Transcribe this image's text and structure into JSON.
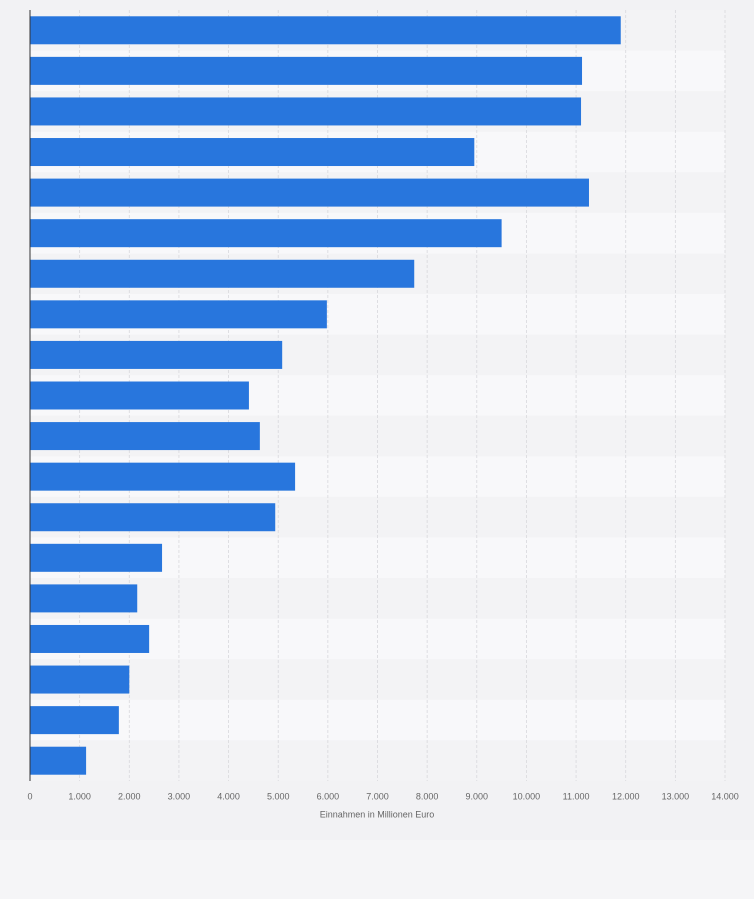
{
  "chart_data": {
    "type": "bar",
    "orientation": "horizontal",
    "x_label": "Einnahmen in Millionen Euro",
    "categories": [
      null,
      null,
      null,
      null,
      null,
      null,
      null,
      null,
      null,
      null,
      null,
      null,
      null,
      null,
      null,
      null,
      null,
      null,
      null
    ],
    "values": [
      11900,
      11120,
      11100,
      8950,
      11260,
      9500,
      7740,
      5980,
      5080,
      4410,
      4630,
      5340,
      4940,
      2660,
      2160,
      2400,
      2000,
      1790,
      1130
    ],
    "color": "#2876dd",
    "xlim": [
      0,
      14000
    ],
    "xticks": [
      0,
      {
        "value": 1000,
        "label": "1.000"
      },
      {
        "value": 2000,
        "label": "2.000"
      },
      {
        "value": 3000,
        "label": "3.000"
      },
      {
        "value": 4000,
        "label": "4.000"
      },
      {
        "value": 5000,
        "label": "5.000"
      },
      {
        "value": 6000,
        "label": "6.000"
      },
      {
        "value": 7000,
        "label": "7.000"
      },
      {
        "value": 8000,
        "label": "8.000"
      },
      {
        "value": 9000,
        "label": "9.000"
      },
      {
        "value": 10000,
        "label": "10.000"
      },
      {
        "value": 11000,
        "label": "11.000"
      },
      {
        "value": 12000,
        "label": "12.000"
      },
      {
        "value": 13000,
        "label": "13.000"
      },
      {
        "value": 14000,
        "label": "14.000"
      }
    ],
    "grid": true
  }
}
